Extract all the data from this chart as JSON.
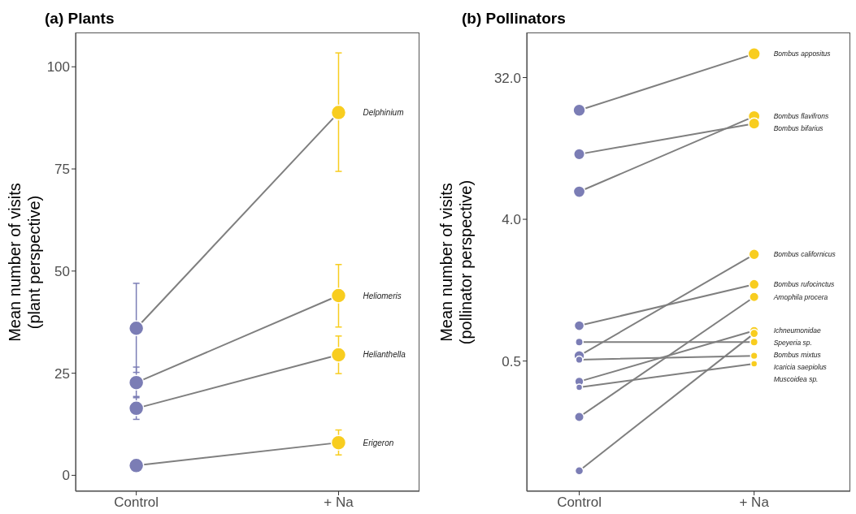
{
  "chart_data": [
    {
      "type": "line",
      "title": "(a) Plants",
      "ylabel": "Mean number of visits\n(plant perspective)",
      "categories": [
        "Control",
        "+ Na"
      ],
      "ylim": [
        -3.9,
        108.4
      ],
      "yticks": [
        0,
        25,
        50,
        75,
        100
      ],
      "marker": "circle",
      "series": [
        {
          "name": "Delphinium",
          "color": "#7f7f7f",
          "colors": [
            "#7b7db5",
            "#f8cd1f"
          ],
          "values": [
            36,
            88.8
          ],
          "errors": [
            [
              25.2,
              47
            ],
            [
              74.4,
              103.4
            ]
          ]
        },
        {
          "name": "Heliomeris",
          "color": "#7f7f7f",
          "colors": [
            "#7b7db5",
            "#f8cd1f"
          ],
          "values": [
            22.7,
            44
          ],
          "errors": [
            [
              19,
              26.5
            ],
            [
              36.3,
              51.6
            ]
          ]
        },
        {
          "name": "Helianthella",
          "color": "#7f7f7f",
          "colors": [
            "#7b7db5",
            "#f8cd1f"
          ],
          "values": [
            16.4,
            29.5
          ],
          "errors": [
            [
              13.7,
              19.3
            ],
            [
              24.9,
              34.1
            ]
          ]
        },
        {
          "name": "Erigeron",
          "color": "#7f7f7f",
          "colors": [
            "#7b7db5",
            "#f8cd1f"
          ],
          "values": [
            2.4,
            8
          ],
          "errors": [
            null,
            [
              5,
              11.1
            ]
          ]
        }
      ]
    },
    {
      "type": "line",
      "title": "(b) Pollinators",
      "ylabel": "Mean number of visits\n(pollinator perspective)",
      "categories": [
        "Control",
        "+ Na"
      ],
      "ylim": [
        0.074,
        62
      ],
      "yticks": [
        {
          "value": 0.5,
          "label": "0.5"
        },
        {
          "value": 4,
          "label": "4.0"
        },
        {
          "value": 32,
          "label": "32.0"
        }
      ],
      "log": "y",
      "marker": "circle",
      "series": [
        {
          "name": "Bombus appositus",
          "color": "#7f7f7f",
          "colors": [
            "#7b7db5",
            "#f8cd1f"
          ],
          "values": [
            19.8,
            45.3
          ]
        },
        {
          "name": "Bombus flavifrons",
          "color": "#7f7f7f",
          "colors": [
            "#7b7db5",
            "#f8cd1f"
          ],
          "values": [
            6,
            18.1
          ]
        },
        {
          "name": "Bombus bifarius",
          "color": "#7f7f7f",
          "colors": [
            "#7b7db5",
            "#f8cd1f"
          ],
          "values": [
            10.4,
            16.3
          ]
        },
        {
          "name": "Bombus californicus",
          "color": "#7f7f7f",
          "colors": [
            "#7b7db5",
            "#f8cd1f"
          ],
          "values": [
            0.54,
            2.39
          ]
        },
        {
          "name": "Bombus rufocinctus",
          "color": "#7f7f7f",
          "colors": [
            "#7b7db5",
            "#f8cd1f"
          ],
          "values": [
            0.84,
            1.54
          ]
        },
        {
          "name": "Amophila procera",
          "color": "#7f7f7f",
          "colors": [
            "#7b7db5",
            "#f8cd1f"
          ],
          "values": [
            0.22,
            1.28
          ]
        },
        {
          "name": "Ichneumonidae",
          "color": "#7f7f7f",
          "colors": [
            "#7b7db5",
            "#f8cd1f"
          ],
          "values": [
            0.37,
            0.78
          ]
        },
        {
          "name": "Speyeria sp.",
          "color": "#7f7f7f",
          "colors": [
            "#7b7db5",
            "#f8cd1f"
          ],
          "values": [
            0.1,
            0.75
          ]
        },
        {
          "name": "Bombus mixtus",
          "color": "#7f7f7f",
          "colors": [
            "#7b7db5",
            "#f8cd1f"
          ],
          "values": [
            0.66,
            0.66
          ]
        },
        {
          "name": "Icaricia saepiolus",
          "color": "#7f7f7f",
          "colors": [
            "#7b7db5",
            "#f8cd1f"
          ],
          "values": [
            0.51,
            0.54
          ]
        },
        {
          "name": "Muscoidea sp.",
          "color": "#7f7f7f",
          "colors": [
            "#7b7db5",
            "#f8cd1f"
          ],
          "values": [
            0.34,
            0.48
          ]
        }
      ]
    }
  ]
}
